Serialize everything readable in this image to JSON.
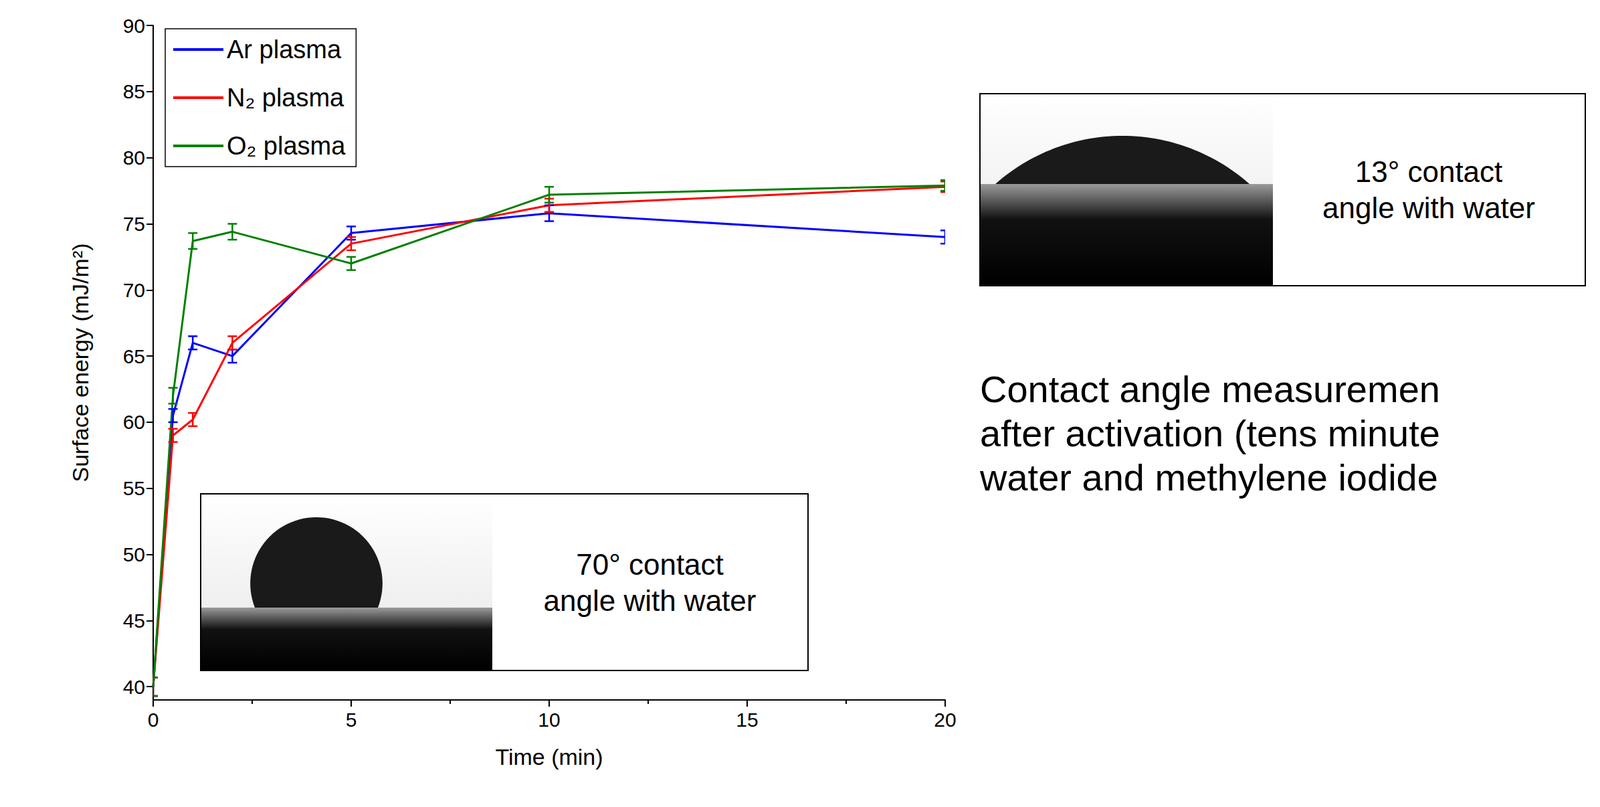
{
  "chart_data": {
    "type": "line",
    "x": [
      0,
      0.5,
      1,
      2,
      5,
      10,
      20
    ],
    "series": [
      {
        "name": "Ar plasma",
        "color": "#0000ff",
        "values": [
          40,
          60.5,
          66,
          65,
          74.3,
          75.8,
          74
        ],
        "errors": [
          0.7,
          0.5,
          0.5,
          0.5,
          0.5,
          0.6,
          0.5
        ]
      },
      {
        "name": "N₂ plasma",
        "color": "#ff0000",
        "values": [
          40,
          59,
          60.2,
          66,
          73.5,
          76.4,
          77.8
        ],
        "errors": [
          0.7,
          0.5,
          0.5,
          0.5,
          0.5,
          0.5,
          0.4
        ]
      },
      {
        "name": "O₂ plasma",
        "color": "#008000",
        "values": [
          40,
          62,
          73.7,
          74.4,
          72,
          77.2,
          77.9
        ],
        "errors": [
          0.7,
          0.6,
          0.6,
          0.6,
          0.5,
          0.6,
          0.4
        ]
      }
    ],
    "x_label": "Time (min)",
    "y_label": "Surface energy (mJ/m²)",
    "xlim": [
      0,
      20
    ],
    "xticks": [
      0,
      5,
      10,
      15,
      20
    ],
    "ylim": [
      39,
      90
    ],
    "yticks": [
      40,
      45,
      50,
      55,
      60,
      65,
      70,
      75,
      80,
      85,
      90
    ],
    "grid": false,
    "legend": "top-left",
    "insets": [
      {
        "lines": [
          "70° contact",
          "angle with water"
        ]
      },
      {
        "lines": [
          "13° contact",
          "angle with water"
        ]
      }
    ],
    "caption": [
      "Contact angle measuremen",
      "after activation (tens minute",
      "water and methylene iodide"
    ]
  }
}
